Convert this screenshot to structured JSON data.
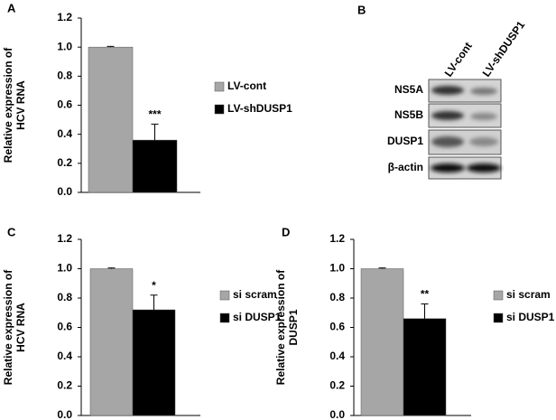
{
  "chart_data": [
    {
      "type": "bar",
      "panel": "A",
      "ylabel": [
        "Relative expression of",
        "HCV RNA"
      ],
      "ylim": [
        0,
        1.2
      ],
      "yticks": [
        {
          "value": 0,
          "label": "0.0"
        },
        0.2,
        0.4,
        0.6,
        0.8,
        {
          "value": 1,
          "label": "1.0"
        },
        1.2
      ],
      "series": [
        {
          "name": "LV-cont",
          "color": "#a6a6a6",
          "values": [
            1.0
          ],
          "errors": [
            0.005
          ]
        },
        {
          "name": "LV-shDUSP1",
          "color": "#000000",
          "values": [
            0.36
          ],
          "errors": [
            0.11
          ]
        }
      ],
      "annotation": "***"
    },
    {
      "type": "bar",
      "panel": "C",
      "ylabel": [
        "Relative expression of",
        "HCV RNA"
      ],
      "ylim": [
        0,
        1.2
      ],
      "yticks": [
        {
          "value": 0,
          "label": "0.0"
        },
        0.2,
        0.4,
        0.6,
        0.8,
        {
          "value": 1,
          "label": "1.0"
        },
        1.2
      ],
      "series": [
        {
          "name": "si scram",
          "color": "#a6a6a6",
          "values": [
            1.0
          ],
          "errors": [
            0.005
          ]
        },
        {
          "name": "si DUSP1",
          "color": "#000000",
          "values": [
            0.72
          ],
          "errors": [
            0.1
          ]
        }
      ],
      "annotation": "*"
    },
    {
      "type": "bar",
      "panel": "D",
      "ylabel": [
        "Relative expression of",
        "DUSP1"
      ],
      "ylim": [
        0,
        1.2
      ],
      "yticks": [
        {
          "value": 0,
          "label": "0.0"
        },
        0.2,
        0.4,
        0.6,
        0.8,
        {
          "value": 1,
          "label": "1.0"
        },
        1.2
      ],
      "series": [
        {
          "name": "si scram",
          "color": "#a6a6a6",
          "values": [
            1.0
          ],
          "errors": [
            0.005
          ]
        },
        {
          "name": "si DUSP1",
          "color": "#000000",
          "values": [
            0.66
          ],
          "errors": [
            0.1
          ]
        }
      ],
      "annotation": "**"
    }
  ],
  "blot": {
    "panel": "B",
    "lanes": [
      "LV-cont",
      "LV-shDUSP1"
    ],
    "rows": [
      "NS5A",
      "NS5B",
      "DUSP1",
      "β-actin"
    ]
  }
}
